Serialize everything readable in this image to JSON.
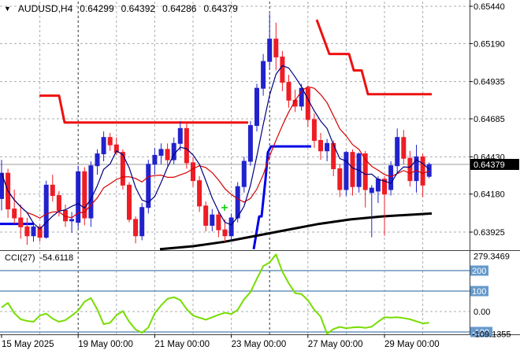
{
  "title": {
    "symbol": "AUDUSD,H4",
    "open": "0.64299",
    "high": "0.64392",
    "low": "0.64286",
    "close": "0.64379"
  },
  "price_axis": {
    "labels": [
      {
        "text": "0.65440",
        "price": 0.6544
      },
      {
        "text": "0.65190",
        "price": 0.6519
      },
      {
        "text": "0.64935",
        "price": 0.64935
      },
      {
        "text": "0.64685",
        "price": 0.64685
      },
      {
        "text": "0.64430",
        "price": 0.6443
      },
      {
        "text": "0.64180",
        "price": 0.6418
      },
      {
        "text": "0.63925",
        "price": 0.63925
      }
    ],
    "current": {
      "text": "0.64379",
      "price": 0.64379
    }
  },
  "time_axis": {
    "labels": [
      {
        "text": "15 May 2025",
        "index": 0
      },
      {
        "text": "19 May 00:00",
        "index": 12
      },
      {
        "text": "21 May 00:00",
        "index": 24
      },
      {
        "text": "23 May 00:00",
        "index": 36
      },
      {
        "text": "27 May 00:00",
        "index": 48
      },
      {
        "text": "29 May 00:00",
        "index": 60
      }
    ],
    "day_boundary_indices": [
      6,
      12,
      18,
      24,
      30,
      36,
      42,
      48,
      54,
      60,
      66
    ],
    "week_separator_indices": [
      12,
      42
    ]
  },
  "indicator": {
    "name_label": "CCI(27)",
    "value_label": "-54.6118",
    "max_label": "279.3469",
    "min_label": "-109.1355",
    "level_labels": [
      {
        "text": "200",
        "value": 200,
        "chip": true
      },
      {
        "text": "100",
        "value": 100,
        "chip": true
      },
      {
        "text": "0.00",
        "value": 0,
        "chip": false
      },
      {
        "text": "-100",
        "value": -100,
        "chip": true
      }
    ]
  },
  "chart_data": {
    "type": "candlestick",
    "symbol": "AUDUSD",
    "timeframe": "H4",
    "title": "AUDUSD,H4 0.64299 0.64392 0.64286 0.64379",
    "x_labels": [
      "15 May 2025",
      "19 May 00:00",
      "21 May 00:00",
      "23 May 00:00",
      "27 May 00:00",
      "29 May 00:00"
    ],
    "y_range": [
      0.63925,
      0.6544
    ],
    "grid": true,
    "candles": [
      [
        0.6415,
        0.6441,
        0.6407,
        0.6432
      ],
      [
        0.6432,
        0.6435,
        0.6402,
        0.6408
      ],
      [
        0.6408,
        0.6421,
        0.6398,
        0.6402
      ],
      [
        0.6402,
        0.6411,
        0.6388,
        0.6396
      ],
      [
        0.6396,
        0.6402,
        0.6384,
        0.639
      ],
      [
        0.639,
        0.6399,
        0.6386,
        0.6396
      ],
      [
        0.6396,
        0.6398,
        0.6386,
        0.6389
      ],
      [
        0.6389,
        0.6427,
        0.6388,
        0.6424
      ],
      [
        0.6424,
        0.6431,
        0.6413,
        0.6417
      ],
      [
        0.6417,
        0.642,
        0.6403,
        0.6407
      ],
      [
        0.6407,
        0.6411,
        0.6396,
        0.64
      ],
      [
        0.64,
        0.6406,
        0.6392,
        0.6401
      ],
      [
        0.6399,
        0.6437,
        0.6395,
        0.6433
      ],
      [
        0.6433,
        0.6436,
        0.6397,
        0.6402
      ],
      [
        0.6402,
        0.644,
        0.6396,
        0.6437
      ],
      [
        0.6437,
        0.6448,
        0.6431,
        0.6445
      ],
      [
        0.6445,
        0.646,
        0.644,
        0.6456
      ],
      [
        0.6456,
        0.6459,
        0.6447,
        0.6451
      ],
      [
        0.6451,
        0.6456,
        0.6444,
        0.6446
      ],
      [
        0.6446,
        0.6448,
        0.6421,
        0.6424
      ],
      [
        0.6424,
        0.6426,
        0.6399,
        0.6401
      ],
      [
        0.6401,
        0.6403,
        0.6385,
        0.639
      ],
      [
        0.639,
        0.6412,
        0.6387,
        0.6409
      ],
      [
        0.6409,
        0.6441,
        0.6405,
        0.6438
      ],
      [
        0.6438,
        0.6449,
        0.6431,
        0.6444
      ],
      [
        0.6444,
        0.6452,
        0.6438,
        0.6448
      ],
      [
        0.6448,
        0.6452,
        0.6437,
        0.6441
      ],
      [
        0.6441,
        0.6456,
        0.6438,
        0.6452
      ],
      [
        0.6452,
        0.6467,
        0.6447,
        0.6462
      ],
      [
        0.6462,
        0.6466,
        0.6435,
        0.6439
      ],
      [
        0.6439,
        0.6443,
        0.6423,
        0.6427
      ],
      [
        0.6427,
        0.643,
        0.6406,
        0.641
      ],
      [
        0.641,
        0.6413,
        0.6393,
        0.6397
      ],
      [
        0.6397,
        0.6408,
        0.6393,
        0.6404
      ],
      [
        0.6404,
        0.6406,
        0.6389,
        0.6394
      ],
      [
        0.6394,
        0.6401,
        0.6386,
        0.639
      ],
      [
        0.639,
        0.6405,
        0.6387,
        0.6402
      ],
      [
        0.6402,
        0.6426,
        0.6399,
        0.6423
      ],
      [
        0.6423,
        0.6443,
        0.6419,
        0.644
      ],
      [
        0.644,
        0.6467,
        0.6437,
        0.6464
      ],
      [
        0.6464,
        0.6492,
        0.646,
        0.6489
      ],
      [
        0.6489,
        0.6512,
        0.6484,
        0.6507
      ],
      [
        0.6507,
        0.6539,
        0.6502,
        0.6522
      ],
      [
        0.6522,
        0.6533,
        0.6501,
        0.651
      ],
      [
        0.651,
        0.6514,
        0.6487,
        0.6493
      ],
      [
        0.6493,
        0.6498,
        0.6476,
        0.6481
      ],
      [
        0.6481,
        0.6488,
        0.6473,
        0.6477
      ],
      [
        0.6477,
        0.6492,
        0.6474,
        0.6489
      ],
      [
        0.6489,
        0.6491,
        0.6463,
        0.6468
      ],
      [
        0.6468,
        0.6472,
        0.6449,
        0.6454
      ],
      [
        0.6454,
        0.6459,
        0.6441,
        0.6447
      ],
      [
        0.6447,
        0.6455,
        0.644,
        0.6452
      ],
      [
        0.6452,
        0.6454,
        0.643,
        0.6435
      ],
      [
        0.6435,
        0.6438,
        0.6416,
        0.6421
      ],
      [
        0.6421,
        0.6447,
        0.6417,
        0.6446
      ],
      [
        0.6446,
        0.6448,
        0.6417,
        0.6423
      ],
      [
        0.6423,
        0.6446,
        0.6419,
        0.6445
      ],
      [
        0.6445,
        0.6447,
        0.6409,
        0.6421
      ],
      [
        0.6419,
        0.6424,
        0.6389,
        0.6422
      ],
      [
        0.642,
        0.643,
        0.6412,
        0.6428
      ],
      [
        0.6428,
        0.643,
        0.639,
        0.6418
      ],
      [
        0.6421,
        0.644,
        0.6417,
        0.6437
      ],
      [
        0.6437,
        0.6462,
        0.6432,
        0.6456
      ],
      [
        0.6456,
        0.6461,
        0.6438,
        0.6442
      ],
      [
        0.6442,
        0.6447,
        0.6423,
        0.6427
      ],
      [
        0.6427,
        0.6451,
        0.6419,
        0.6443
      ],
      [
        0.6443,
        0.6445,
        0.6416,
        0.6424
      ],
      [
        0.64299,
        0.64392,
        0.64286,
        0.64379
      ]
    ],
    "overlays": {
      "ma_fast": {
        "type": "sma",
        "period": 5,
        "source": "close",
        "color_key": "ma_navy"
      },
      "ma_slow": {
        "type": "sma",
        "period": 10,
        "source": "close",
        "color_key": "ma_red"
      },
      "ma_long_points": [
        [
          203,
          0.6381
        ],
        [
          245,
          0.6383
        ],
        [
          285,
          0.6386
        ],
        [
          325,
          0.639
        ],
        [
          365,
          0.6394
        ],
        [
          405,
          0.6398
        ],
        [
          445,
          0.6401
        ],
        [
          485,
          0.6403
        ],
        [
          548,
          0.6405
        ]
      ],
      "resistance_steps": [
        [
          [
            50,
            0.6484
          ],
          [
            75,
            0.6484
          ],
          [
            82,
            0.6466
          ],
          [
            315,
            0.6466
          ]
        ],
        [
          [
            402,
            0.6535
          ],
          [
            418,
            0.6512
          ],
          [
            443,
            0.6512
          ],
          [
            449,
            0.6501
          ],
          [
            459,
            0.6501
          ],
          [
            467,
            0.6485
          ],
          [
            548,
            0.6485
          ]
        ]
      ],
      "support_steps": [
        [
          [
            0,
            0.6398
          ],
          [
            43,
            0.6398
          ]
        ],
        [
          [
            322,
            0.6381
          ],
          [
            329,
            0.6403
          ],
          [
            332,
            0.6403
          ],
          [
            337,
            0.6428
          ],
          [
            340,
            0.6446
          ],
          [
            344,
            0.645
          ],
          [
            395,
            0.645
          ]
        ]
      ],
      "marker": {
        "x": 285,
        "price": 0.64089,
        "shape": "cross"
      }
    },
    "indicator_cci": {
      "name": "CCI",
      "period": 27,
      "last_value": -54.6118,
      "max_value": 279.3469,
      "min_value": -109.1355,
      "levels": [
        200,
        100,
        0,
        -100
      ],
      "values": [
        20,
        42,
        -8,
        -38,
        -46,
        -50,
        -20,
        -10,
        -35,
        -50,
        -42,
        -20,
        5,
        48,
        66,
        10,
        -62,
        -55,
        -18,
        2,
        -50,
        -88,
        -104,
        -78,
        -8,
        30,
        62,
        70,
        56,
        12,
        -20,
        -30,
        -40,
        -28,
        -16,
        -6,
        -12,
        8,
        60,
        95,
        160,
        222,
        240,
        279.35,
        195,
        138,
        90,
        85,
        55,
        8,
        -25,
        -109.14,
        -86,
        -75,
        -82,
        -78,
        -76,
        -80,
        -74,
        -50,
        -28,
        -30,
        -28,
        -32,
        -38,
        -48,
        -58,
        -54.61
      ]
    }
  },
  "colors": {
    "bull": "#2222cc",
    "bear": "#ee1c25",
    "ma_navy": "#000080",
    "ma_red": "#d40000",
    "step_red": "#ee1111",
    "step_blue": "#0000e8",
    "ma_black": "#000000",
    "grid": "#a8adb3",
    "separator": "#303030",
    "price_line": "#9e9e9e",
    "price_box_bg": "#000000",
    "price_box_text": "#ffffff",
    "cci_line": "#77dd00",
    "cci_level": "#4d7fb2",
    "cci_chip_bg": "#6699cc",
    "cci_chip_text": "#ffffff",
    "axis_text": "#000000",
    "panel_border": "#404040",
    "marker": "#00cc00"
  }
}
